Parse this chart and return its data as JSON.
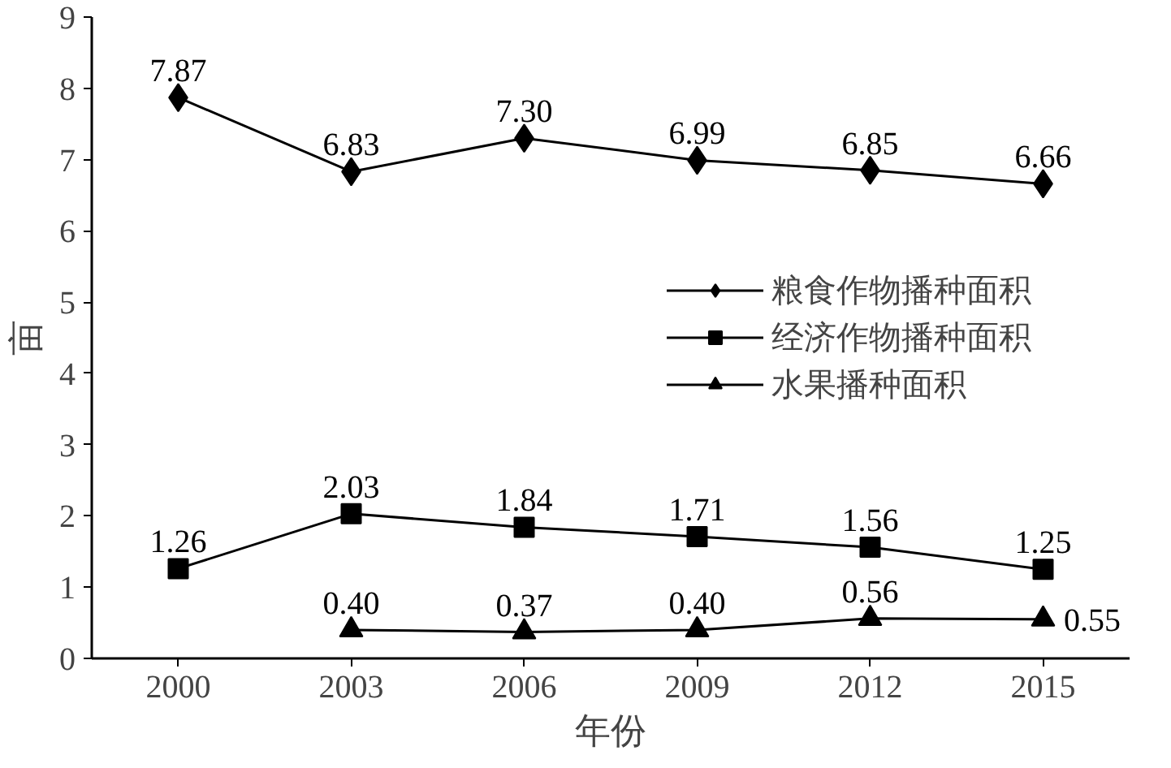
{
  "chart_data": {
    "type": "line",
    "xlabel": "年份",
    "ylabel": "亩",
    "categories": [
      "2000",
      "2003",
      "2006",
      "2009",
      "2012",
      "2015"
    ],
    "series": [
      {
        "name": "粮食作物播种面积",
        "color": "#000000",
        "marker": "diamond",
        "values": [
          7.87,
          6.83,
          7.3,
          6.99,
          6.85,
          6.66
        ],
        "value_labels": [
          "7.87",
          "6.83",
          "7.30",
          "6.99",
          "6.85",
          "6.66"
        ]
      },
      {
        "name": "经济作物播种面积",
        "color": "#000000",
        "marker": "square",
        "values": [
          1.26,
          2.03,
          1.84,
          1.71,
          1.56,
          1.25
        ],
        "value_labels": [
          "1.26",
          "2.03",
          "1.84",
          "1.71",
          "1.56",
          "1.25"
        ]
      },
      {
        "name": "水果播种面积",
        "color": "#000000",
        "marker": "triangle",
        "values": [
          null,
          0.4,
          0.37,
          0.4,
          0.56,
          0.55
        ],
        "value_labels": [
          null,
          "0.40",
          "0.37",
          "0.40",
          "0.56",
          "0.55"
        ]
      }
    ],
    "ylim": [
      0,
      9
    ],
    "yticks": [
      0,
      1,
      2,
      3,
      4,
      5,
      6,
      7,
      8,
      9
    ],
    "grid": false,
    "legend": "right",
    "line_style": "solid"
  }
}
